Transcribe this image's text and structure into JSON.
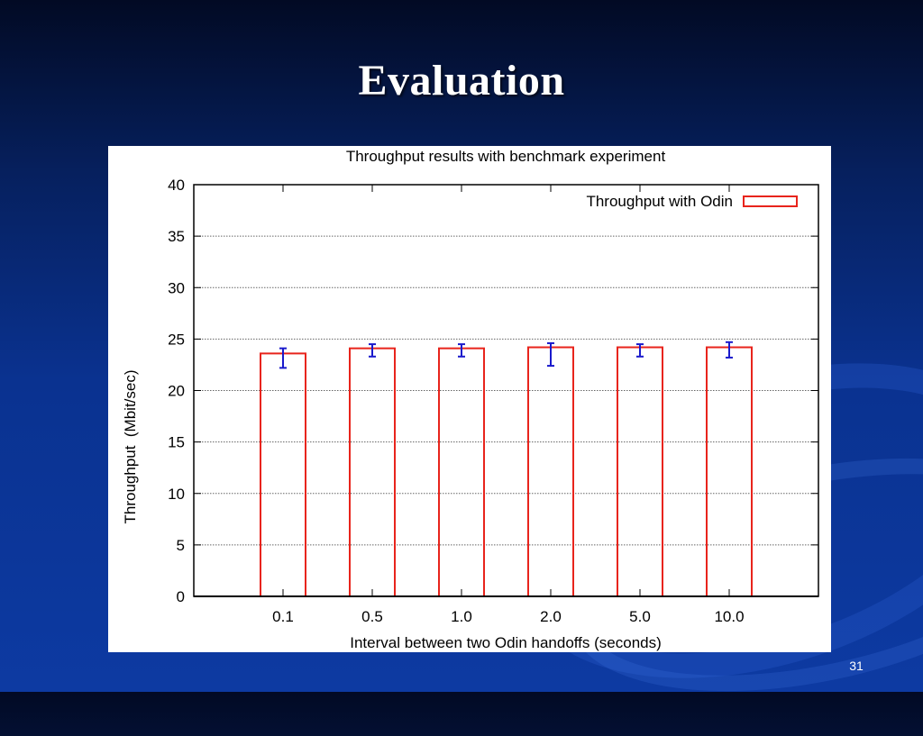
{
  "slide": {
    "title": "Evaluation",
    "page_number": "31"
  },
  "colors": {
    "bar_outline": "#e8241c",
    "error_bar": "#1a1acc",
    "grid": "#666666",
    "axis": "#000000",
    "text": "#000000"
  },
  "chart_data": {
    "type": "bar",
    "title": "Throughput results with benchmark experiment",
    "xlabel": "Interval between two Odin handoffs (seconds)",
    "ylabel": "Throughput  (Mbit/sec)",
    "categories": [
      "0.1",
      "0.5",
      "1.0",
      "2.0",
      "5.0",
      "10.0"
    ],
    "series": [
      {
        "name": "Throughput with Odin",
        "values": [
          23.6,
          24.1,
          24.1,
          24.2,
          24.2,
          24.2
        ],
        "error_low": [
          22.2,
          23.3,
          23.3,
          22.4,
          23.3,
          23.2
        ],
        "error_high": [
          24.1,
          24.5,
          24.5,
          24.6,
          24.5,
          24.7
        ]
      }
    ],
    "ylim": [
      0,
      40
    ],
    "yticks": [
      0,
      5,
      10,
      15,
      20,
      25,
      30,
      35,
      40
    ],
    "grid": true,
    "legend": "top-right"
  }
}
